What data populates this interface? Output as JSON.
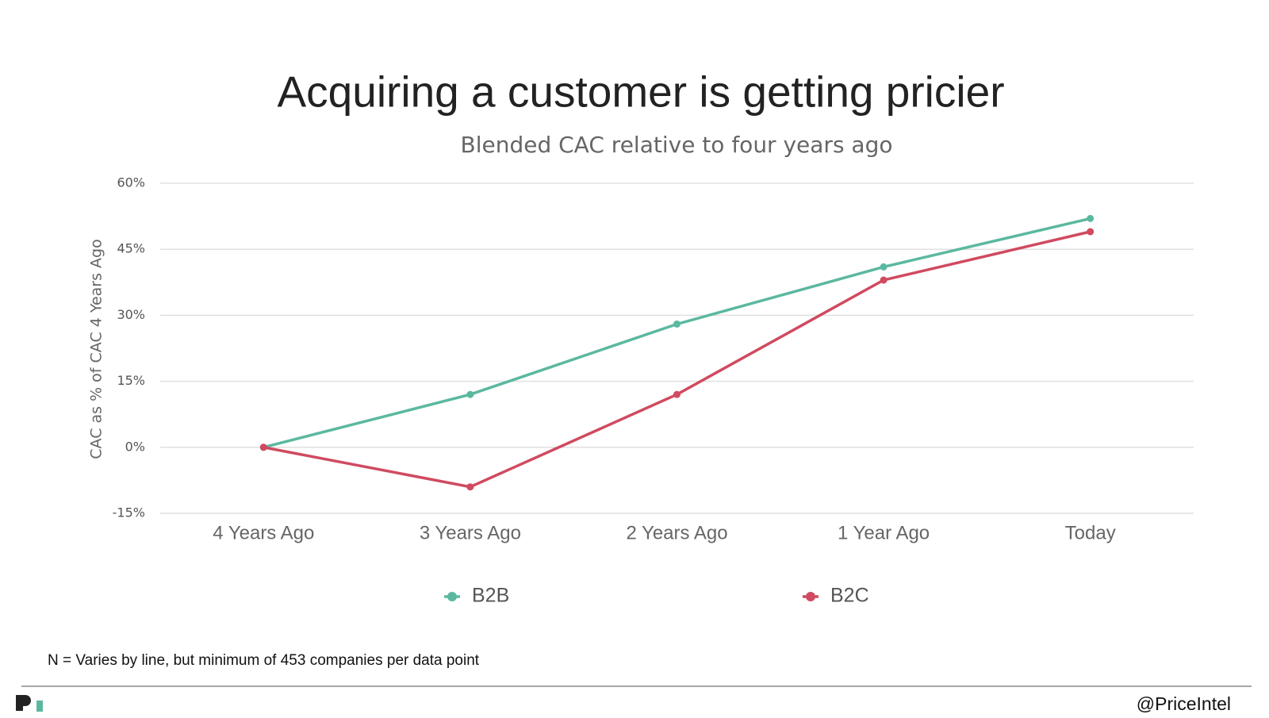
{
  "chart_data": {
    "type": "line",
    "title": "Acquiring a customer is getting pricier",
    "subtitle": "Blended CAC relative to four years ago",
    "y_label": "CAC as % of CAC 4 Years Ago",
    "categories": [
      "4 Years Ago",
      "3 Years Ago",
      "2 Years Ago",
      "1 Year Ago",
      "Today"
    ],
    "series": [
      {
        "name": "B2B",
        "color": "#5bb8a0",
        "values": [
          0,
          12,
          28,
          41,
          52
        ]
      },
      {
        "name": "B2C",
        "color": "#d04a60",
        "values": [
          0,
          -9,
          12,
          38,
          49
        ]
      }
    ],
    "ylim": [
      -15,
      60
    ],
    "yticks": [
      {
        "value": -15,
        "label": "-15%"
      },
      {
        "value": 0,
        "label": "0%"
      },
      {
        "value": 15,
        "label": "15%"
      },
      {
        "value": 30,
        "label": "30%"
      },
      {
        "value": 45,
        "label": "45%"
      },
      {
        "value": 60,
        "label": "60%"
      }
    ],
    "grid": true,
    "footnote": "N = Varies by line, but minimum of 453 companies per data point",
    "handle": "@PriceIntel"
  }
}
